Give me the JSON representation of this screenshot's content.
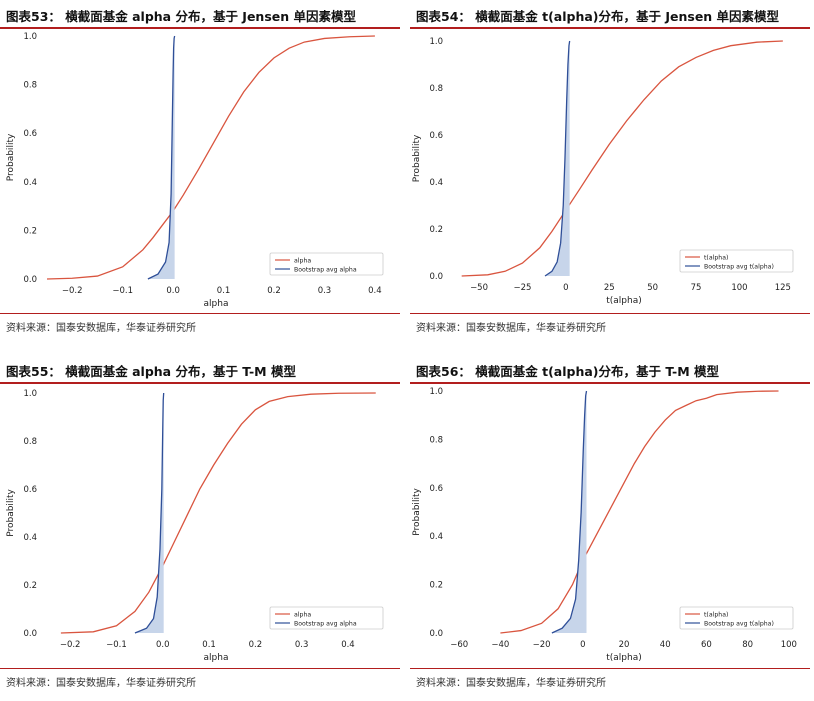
{
  "source_text": "资料来源：国泰安数据库，华泰证券研究所",
  "legend_bootstrap_alpha": "Bootstrap avg alpha",
  "legend_bootstrap_talpha": "Bootstrap avg t(alpha)",
  "colors": {
    "red": "#d9553f",
    "blue": "#2f4f98",
    "fill": "#c7d5ea",
    "rule": "#b21e1e"
  },
  "chart_data": [
    {
      "type": "line",
      "title": "图表53：  横截面基金 alpha 分布，基于 Jensen 单因素模型",
      "xlabel": "alpha",
      "ylabel": "Probability",
      "xlim": [
        -0.25,
        0.42
      ],
      "ylim": [
        0,
        1
      ],
      "xticks": [
        -0.2,
        -0.1,
        0.0,
        0.1,
        0.2,
        0.3,
        0.4
      ],
      "xtick_labels": [
        "−0.2",
        "−0.1",
        "0.0",
        "0.1",
        "0.2",
        "0.3",
        "0.4"
      ],
      "yticks": [
        0.0,
        0.2,
        0.4,
        0.6,
        0.8,
        1.0
      ],
      "ytick_labels": [
        "0.0",
        "0.2",
        "0.4",
        "0.6",
        "0.8",
        "1.0"
      ],
      "legend": "lower-right",
      "series": [
        {
          "name": "alpha",
          "color": "#d9553f",
          "x": [
            -0.25,
            -0.2,
            -0.15,
            -0.1,
            -0.06,
            -0.04,
            -0.02,
            0.0,
            0.02,
            0.05,
            0.08,
            0.11,
            0.14,
            0.17,
            0.2,
            0.23,
            0.26,
            0.3,
            0.35,
            0.4
          ],
          "y": [
            0.0,
            0.003,
            0.012,
            0.05,
            0.12,
            0.17,
            0.225,
            0.28,
            0.345,
            0.45,
            0.56,
            0.67,
            0.77,
            0.85,
            0.91,
            0.95,
            0.975,
            0.99,
            0.997,
            1.0
          ]
        },
        {
          "name": "Bootstrap avg alpha",
          "color": "#2f4f98",
          "filled": true,
          "x": [
            -0.05,
            -0.03,
            -0.015,
            -0.008,
            -0.004,
            -0.002,
            0.0,
            0.001,
            0.002,
            0.003
          ],
          "y": [
            0.0,
            0.02,
            0.07,
            0.15,
            0.35,
            0.6,
            0.85,
            0.95,
            0.99,
            1.0
          ]
        }
      ]
    },
    {
      "type": "line",
      "title": "图表54：  横截面基金 t(alpha)分布，基于 Jensen 单因素模型",
      "xlabel": "t(alpha)",
      "ylabel": "Probability",
      "xlim": [
        -65,
        132
      ],
      "ylim": [
        0,
        1
      ],
      "xticks": [
        -50,
        -25,
        0,
        25,
        50,
        75,
        100,
        125
      ],
      "xtick_labels": [
        "−50",
        "−25",
        "0",
        "25",
        "50",
        "75",
        "100",
        "125"
      ],
      "yticks": [
        0.0,
        0.2,
        0.4,
        0.6,
        0.8,
        1.0
      ],
      "ytick_labels": [
        "0.0",
        "0.2",
        "0.4",
        "0.6",
        "0.8",
        "1.0"
      ],
      "legend": "lower-right",
      "series": [
        {
          "name": "t(alpha)",
          "color": "#d9553f",
          "x": [
            -60,
            -45,
            -35,
            -25,
            -15,
            -8,
            0,
            8,
            15,
            25,
            35,
            45,
            55,
            65,
            75,
            85,
            95,
            110,
            125
          ],
          "y": [
            0.0,
            0.005,
            0.02,
            0.055,
            0.12,
            0.19,
            0.28,
            0.37,
            0.45,
            0.56,
            0.66,
            0.75,
            0.83,
            0.89,
            0.93,
            0.96,
            0.98,
            0.995,
            1.0
          ]
        },
        {
          "name": "Bootstrap avg t(alpha)",
          "color": "#2f4f98",
          "filled": true,
          "x": [
            -12,
            -8,
            -5,
            -3,
            -1.5,
            -0.5,
            0.5,
            1.2,
            1.8,
            2.2
          ],
          "y": [
            0.0,
            0.02,
            0.06,
            0.14,
            0.3,
            0.5,
            0.75,
            0.9,
            0.98,
            1.0
          ]
        }
      ]
    },
    {
      "type": "line",
      "title": "图表55：  横截面基金 alpha 分布，基于 T-M 模型",
      "xlabel": "alpha",
      "ylabel": "Probability",
      "xlim": [
        -0.25,
        0.48
      ],
      "ylim": [
        0,
        1
      ],
      "xticks": [
        -0.2,
        -0.1,
        0.0,
        0.1,
        0.2,
        0.3,
        0.4
      ],
      "xtick_labels": [
        "−0.2",
        "−0.1",
        "0.0",
        "0.1",
        "0.2",
        "0.3",
        "0.4"
      ],
      "yticks": [
        0.0,
        0.2,
        0.4,
        0.6,
        0.8,
        1.0
      ],
      "ytick_labels": [
        "0.0",
        "0.2",
        "0.4",
        "0.6",
        "0.8",
        "1.0"
      ],
      "legend": "lower-right",
      "series": [
        {
          "name": "alpha",
          "color": "#d9553f",
          "x": [
            -0.22,
            -0.15,
            -0.1,
            -0.06,
            -0.03,
            0.0,
            0.02,
            0.05,
            0.08,
            0.11,
            0.14,
            0.17,
            0.2,
            0.23,
            0.27,
            0.32,
            0.38,
            0.46
          ],
          "y": [
            0.0,
            0.005,
            0.03,
            0.09,
            0.17,
            0.28,
            0.36,
            0.48,
            0.6,
            0.7,
            0.79,
            0.87,
            0.93,
            0.965,
            0.985,
            0.995,
            0.999,
            1.0
          ]
        },
        {
          "name": "Bootstrap avg alpha",
          "color": "#2f4f98",
          "filled": true,
          "x": [
            -0.06,
            -0.035,
            -0.02,
            -0.012,
            -0.006,
            -0.002,
            0.0,
            0.001,
            0.002
          ],
          "y": [
            0.0,
            0.02,
            0.06,
            0.15,
            0.35,
            0.6,
            0.85,
            0.97,
            1.0
          ]
        }
      ]
    },
    {
      "type": "line",
      "title": "图表56：  横截面基金 t(alpha)分布，基于 T-M 模型",
      "xlabel": "t(alpha)",
      "ylabel": "Probability",
      "xlim": [
        -63,
        103
      ],
      "ylim": [
        0,
        1
      ],
      "xticks": [
        -60,
        -40,
        -20,
        0,
        20,
        40,
        60,
        80,
        100
      ],
      "xtick_labels": [
        "−60",
        "−40",
        "−20",
        "0",
        "20",
        "40",
        "60",
        "80",
        "100"
      ],
      "yticks": [
        0.0,
        0.2,
        0.4,
        0.6,
        0.8,
        1.0
      ],
      "ytick_labels": [
        "0.0",
        "0.2",
        "0.4",
        "0.6",
        "0.8",
        "1.0"
      ],
      "legend": "lower-right",
      "series": [
        {
          "name": "t(alpha)",
          "color": "#d9553f",
          "x": [
            -40,
            -30,
            -20,
            -12,
            -5,
            0,
            5,
            10,
            15,
            20,
            25,
            30,
            35,
            40,
            45,
            50,
            55,
            60,
            65,
            75,
            85,
            95
          ],
          "y": [
            0.0,
            0.01,
            0.04,
            0.1,
            0.2,
            0.3,
            0.38,
            0.46,
            0.54,
            0.62,
            0.7,
            0.77,
            0.83,
            0.88,
            0.92,
            0.94,
            0.96,
            0.97,
            0.985,
            0.995,
            0.999,
            1.0
          ]
        },
        {
          "name": "Bootstrap avg t(alpha)",
          "color": "#2f4f98",
          "filled": true,
          "x": [
            -15,
            -10,
            -6,
            -3.5,
            -2,
            -0.8,
            0.2,
            0.9,
            1.4,
            1.8
          ],
          "y": [
            0.0,
            0.02,
            0.06,
            0.14,
            0.3,
            0.5,
            0.75,
            0.9,
            0.98,
            1.0
          ]
        }
      ]
    }
  ]
}
